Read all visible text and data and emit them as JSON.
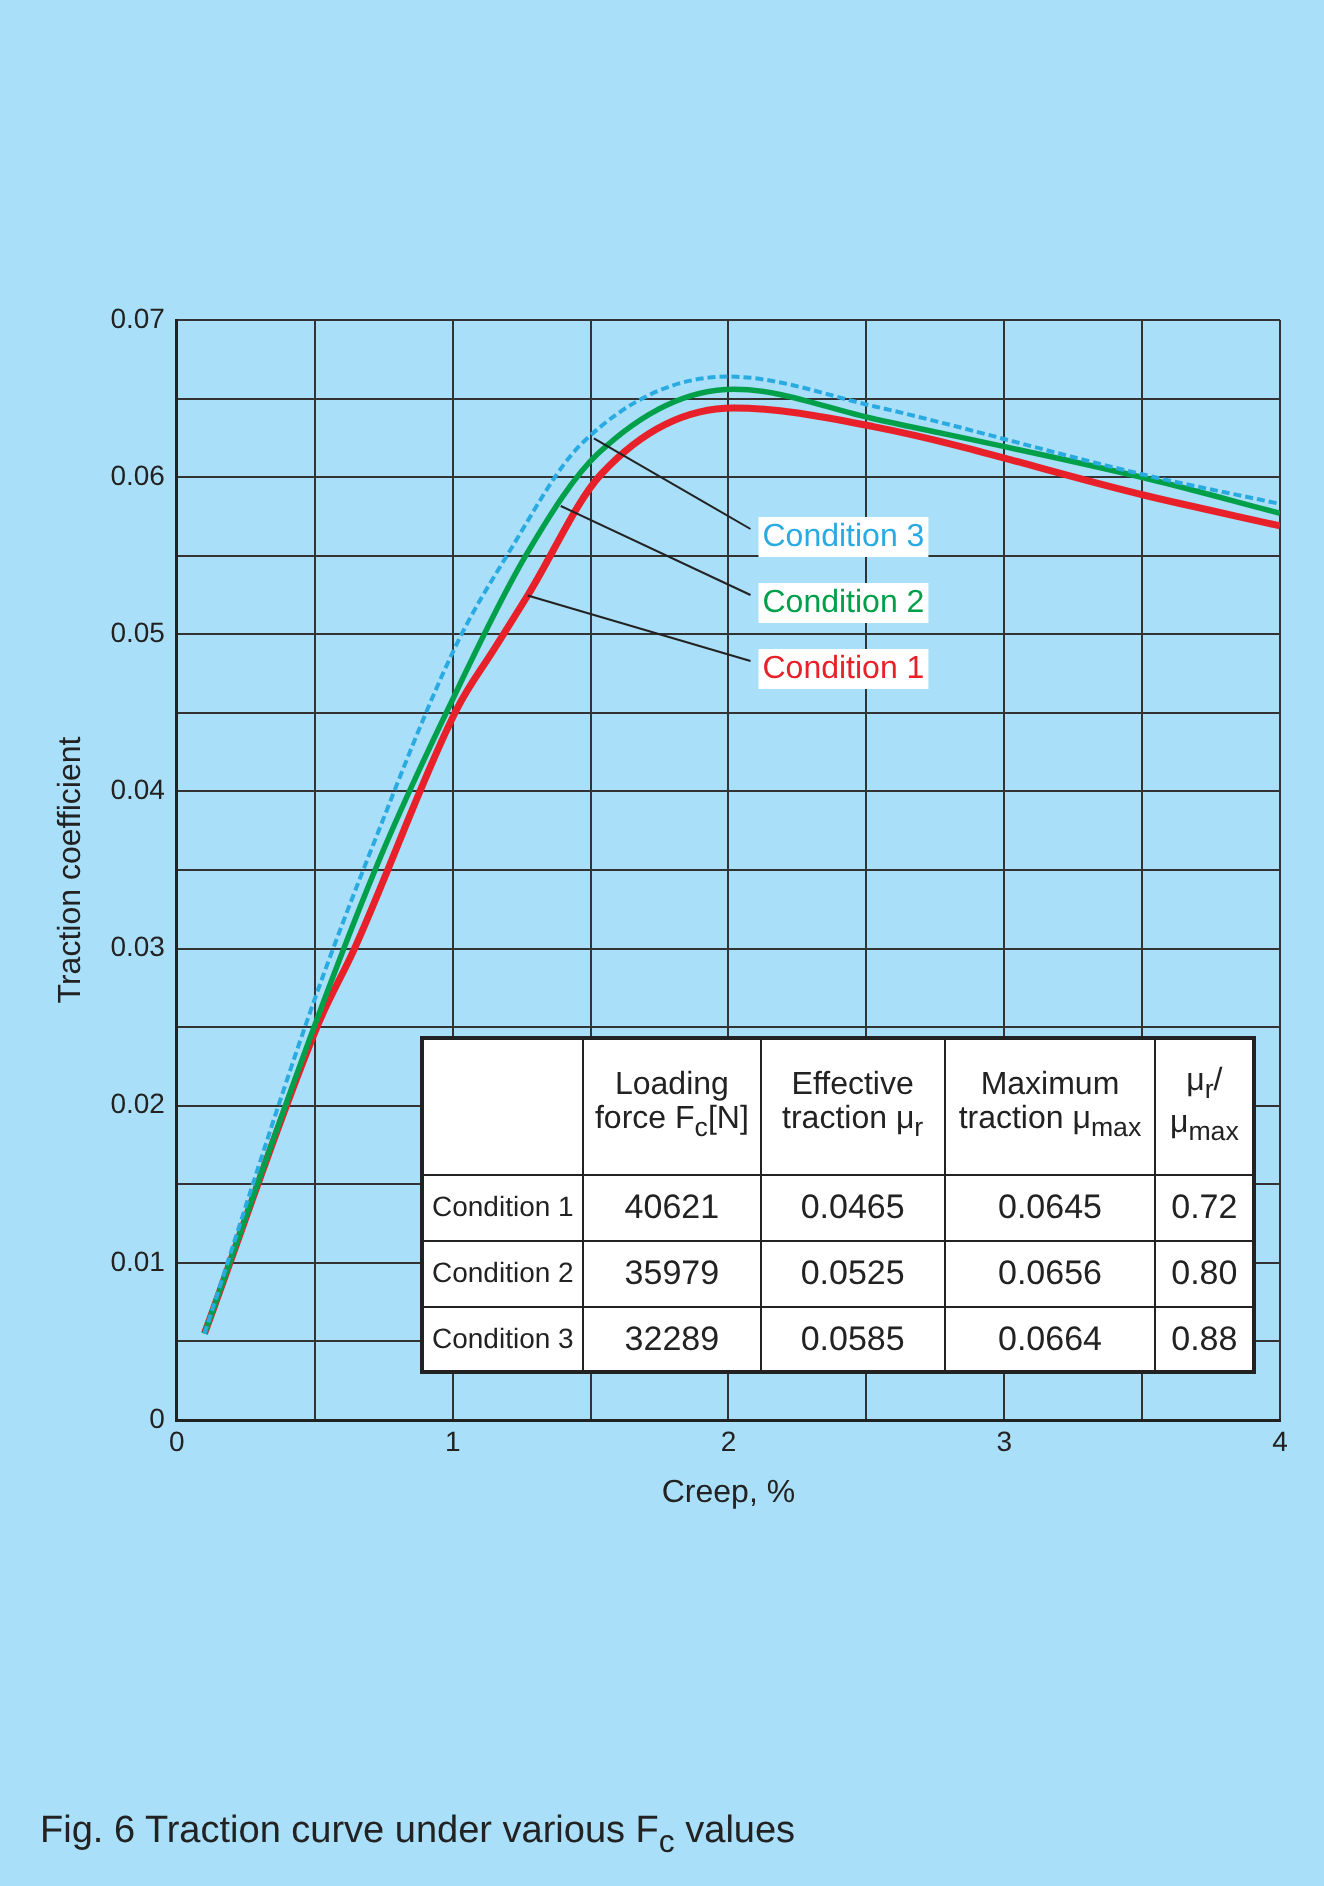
{
  "chart_data": {
    "type": "line",
    "title": "Fig. 6  Traction curve under various F$_{c}$ values",
    "xlabel": "Creep, %",
    "ylabel": "Traction coefficient",
    "xlim": [
      0,
      4
    ],
    "xticks": [
      0,
      {
        "value": 0.5,
        "label": null
      },
      1,
      {
        "value": 1.5,
        "label": null
      },
      2,
      {
        "value": 2.5,
        "label": null
      },
      3,
      {
        "value": 3.5,
        "label": null
      },
      4
    ],
    "ylim": [
      0,
      0.07
    ],
    "yticks": [
      0,
      {
        "value": 0.005,
        "label": null
      },
      0.01,
      {
        "value": 0.015,
        "label": null
      },
      0.02,
      {
        "value": 0.025,
        "label": null
      },
      0.03,
      {
        "value": 0.035,
        "label": null
      },
      0.04,
      {
        "value": 0.045,
        "label": null
      },
      0.05,
      {
        "value": 0.055,
        "label": null
      },
      0.06,
      {
        "value": 0.065,
        "label": null
      },
      0.07
    ],
    "grid": true,
    "legend": false,
    "marker": "none",
    "series": [
      {
        "name": "Condition 1",
        "color": "#e8202a",
        "line_style": "solid",
        "x": [
          0.1,
          0.51,
          0.644,
          1.014,
          1.152,
          1.273,
          1.539,
          2.02,
          2.53,
          3.52,
          4.0
        ],
        "values": [
          0.0055,
          0.0251,
          0.03,
          0.0452,
          0.0491,
          0.0525,
          0.0602,
          0.0644,
          0.0632,
          0.0588,
          0.0569
        ]
      },
      {
        "name": "Condition 2",
        "color": "#00a04a",
        "line_style": "solid",
        "x": [
          0.1,
          0.51,
          0.74,
          0.982,
          1.268,
          1.527,
          2.02,
          2.53,
          3.52,
          4.0
        ],
        "values": [
          0.0055,
          0.0256,
          0.0359,
          0.0452,
          0.0551,
          0.0615,
          0.0656,
          0.0637,
          0.0599,
          0.0577
        ]
      },
      {
        "name": "Condition 3",
        "color": "#29abe2",
        "line_style": "dashed",
        "x": [
          0.1,
          0.486,
          0.716,
          1.007,
          1.2,
          1.466,
          2.0,
          2.53,
          3.52,
          4.0
        ],
        "values": [
          0.0055,
          0.0261,
          0.0368,
          0.0491,
          0.0551,
          0.0621,
          0.0664,
          0.0645,
          0.0601,
          0.0583
        ]
      }
    ],
    "annotations": [
      "Loading force F$_{c}$[N]",
      "Effective traction μ$_{r}$",
      "Maximum traction μ$_{max}$",
      "μ$_{r}$/μ$_{max}$",
      "Condition 1",
      "40621",
      "0.0465",
      "0.0645",
      "0.72",
      "Condition 2",
      "35979",
      "0.0525",
      "0.0656",
      "0.80",
      "Condition 3",
      "32289",
      "0.0585",
      "0.0664",
      "0.88"
    ]
  }
}
